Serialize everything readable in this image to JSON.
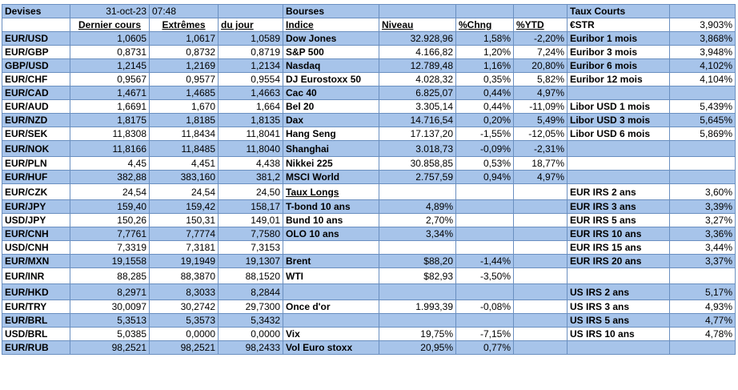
{
  "header": {
    "devises": "Devises",
    "date": "31-oct-23",
    "time": "07:48",
    "bourses": "Bourses",
    "taux_courts": "Taux Courts"
  },
  "columns": {
    "dernier": "Dernier cours",
    "extremes": "Extrêmes",
    "du_jour": "du jour",
    "indice": "Indice",
    "niveau": "Niveau",
    "chng": "%Chng",
    "ytd": "%YTD",
    "estr_label": "€STR",
    "estr_value": "3,903%"
  },
  "rows": [
    {
      "pair": "EUR/USD",
      "last": "1,0605",
      "high": "1,0617",
      "low": "1,0589",
      "index": "Dow Jones",
      "level": "32.928,96",
      "chg": "1,58%",
      "ytd": "-2,20%",
      "rate": "Euribor 1 mois",
      "rval": "3,868%"
    },
    {
      "pair": "EUR/GBP",
      "last": "0,8731",
      "high": "0,8732",
      "low": "0,8719",
      "index": "S&P 500",
      "level": "4.166,82",
      "chg": "1,20%",
      "ytd": "7,24%",
      "rate": "Euribor 3 mois",
      "rval": "3,948%"
    },
    {
      "pair": "GBP/USD",
      "last": "1,2145",
      "high": "1,2169",
      "low": "1,2134",
      "index": "Nasdaq",
      "level": "12.789,48",
      "chg": "1,16%",
      "ytd": "20,80%",
      "rate": "Euribor 6 mois",
      "rval": "4,102%"
    },
    {
      "pair": "EUR/CHF",
      "last": "0,9567",
      "high": "0,9577",
      "low": "0,9554",
      "index": "DJ Eurostoxx 50",
      "level": "4.028,32",
      "chg": "0,35%",
      "ytd": "5,82%",
      "rate": "Euribor 12 mois",
      "rval": "4,104%"
    },
    {
      "pair": "EUR/CAD",
      "last": "1,4671",
      "high": "1,4685",
      "low": "1,4663",
      "index": "Cac 40",
      "level": "6.825,07",
      "chg": "0,44%",
      "ytd": "4,97%",
      "rate": "",
      "rval": ""
    },
    {
      "pair": "EUR/AUD",
      "last": "1,6691",
      "high": "1,670",
      "low": "1,664",
      "index": "Bel 20",
      "level": "3.305,14",
      "chg": "0,44%",
      "ytd": "-11,09%",
      "rate": "Libor USD 1 mois",
      "rval": "5,439%"
    },
    {
      "pair": "EUR/NZD",
      "last": "1,8175",
      "high": "1,8185",
      "low": "1,8135",
      "index": "Dax",
      "level": "14.716,54",
      "chg": "0,20%",
      "ytd": "5,49%",
      "rate": "Libor USD 3 mois",
      "rval": "5,645%"
    },
    {
      "pair": "EUR/SEK",
      "last": "11,8308",
      "high": "11,8434",
      "low": "11,8041",
      "index": "Hang Seng",
      "level": "17.137,20",
      "chg": "-1,55%",
      "ytd": "-12,05%",
      "rate": "Libor USD 6 mois",
      "rval": "5,869%"
    },
    {
      "pair": "EUR/NOK",
      "last": "11,8166",
      "high": "11,8485",
      "low": "11,8040",
      "index": "Shanghai",
      "level": "3.018,73",
      "chg": "-0,09%",
      "ytd": "-2,31%",
      "rate": "",
      "rval": ""
    },
    {
      "pair": "EUR/PLN",
      "last": "4,45",
      "high": "4,451",
      "low": "4,438",
      "index": "Nikkei 225",
      "level": "30.858,85",
      "chg": "0,53%",
      "ytd": "18,77%",
      "rate": "",
      "rval": ""
    },
    {
      "pair": "EUR/HUF",
      "last": "382,88",
      "high": "383,160",
      "low": "381,2",
      "index": "MSCI World",
      "level": "2.757,59",
      "chg": "0,94%",
      "ytd": "4,97%",
      "rate": "",
      "rval": ""
    },
    {
      "pair": "EUR/CZK",
      "last": "24,54",
      "high": "24,54",
      "low": "24,50",
      "index": "Taux Longs",
      "level": "",
      "chg": "",
      "ytd": "",
      "rate": "EUR IRS 2 ans",
      "rval": "3,60%"
    },
    {
      "pair": "EUR/JPY",
      "last": "159,40",
      "high": "159,42",
      "low": "158,17",
      "index": "T-bond 10 ans",
      "level": "4,89%",
      "chg": "",
      "ytd": "",
      "rate": "EUR IRS 3 ans",
      "rval": "3,39%"
    },
    {
      "pair": "USD/JPY",
      "last": "150,26",
      "high": "150,31",
      "low": "149,01",
      "index": "Bund 10 ans",
      "level": "2,70%",
      "chg": "",
      "ytd": "",
      "rate": "EUR IRS 5 ans",
      "rval": "3,27%"
    },
    {
      "pair": "EUR/CNH",
      "last": "7,7761",
      "high": "7,7774",
      "low": "7,7580",
      "index": "OLO 10 ans",
      "level": "3,34%",
      "chg": "",
      "ytd": "",
      "rate": "EUR IRS 10 ans",
      "rval": "3,36%"
    },
    {
      "pair": "USD/CNH",
      "last": "7,3319",
      "high": "7,3181",
      "low": "7,3153",
      "index": "",
      "level": "",
      "chg": "",
      "ytd": "",
      "rate": "EUR IRS 15 ans",
      "rval": "3,44%"
    },
    {
      "pair": "EUR/MXN",
      "last": "19,1558",
      "high": "19,1949",
      "low": "19,1307",
      "index": "Brent",
      "level": "$88,20",
      "chg": "-1,44%",
      "ytd": "",
      "rate": "EUR IRS 20 ans",
      "rval": "3,37%"
    },
    {
      "pair": "EUR/INR",
      "last": "88,285",
      "high": "88,3870",
      "low": "88,1520",
      "index": "WTI",
      "level": "$82,93",
      "chg": "-3,50%",
      "ytd": "",
      "rate": "",
      "rval": ""
    },
    {
      "pair": "EUR/HKD",
      "last": "8,2971",
      "high": "8,3033",
      "low": "8,2844",
      "index": "",
      "level": "",
      "chg": "",
      "ytd": "",
      "rate": "US IRS 2 ans",
      "rval": "5,17%"
    },
    {
      "pair": "EUR/TRY",
      "last": "30,0097",
      "high": "30,2742",
      "low": "29,7300",
      "index": "Once d'or",
      "level": "1.993,39",
      "chg": "-0,08%",
      "ytd": "",
      "rate": "US IRS 3 ans",
      "rval": "4,93%"
    },
    {
      "pair": "EUR/BRL",
      "last": "5,3513",
      "high": "5,3573",
      "low": "5,3432",
      "index": "",
      "level": "",
      "chg": "",
      "ytd": "",
      "rate": "US IRS 5 ans",
      "rval": "4,77%"
    },
    {
      "pair": "USD/BRL",
      "last": "5,0385",
      "high": "0,0000",
      "low": "0,0000",
      "index": "Vix",
      "level": "19,75%",
      "chg": "-7,15%",
      "ytd": "",
      "rate": "US IRS 10 ans",
      "rval": "4,78%"
    },
    {
      "pair": "EUR/RUB",
      "last": "98,2521",
      "high": "98,2521",
      "low": "98,2433",
      "index": "Vol Euro stoxx",
      "level": "20,95%",
      "chg": "0,77%",
      "ytd": "",
      "rate": "",
      "rval": ""
    }
  ],
  "colors": {
    "band_blue": "#a7c4ea",
    "grid_border": "#6a8fc0",
    "white": "#ffffff"
  }
}
